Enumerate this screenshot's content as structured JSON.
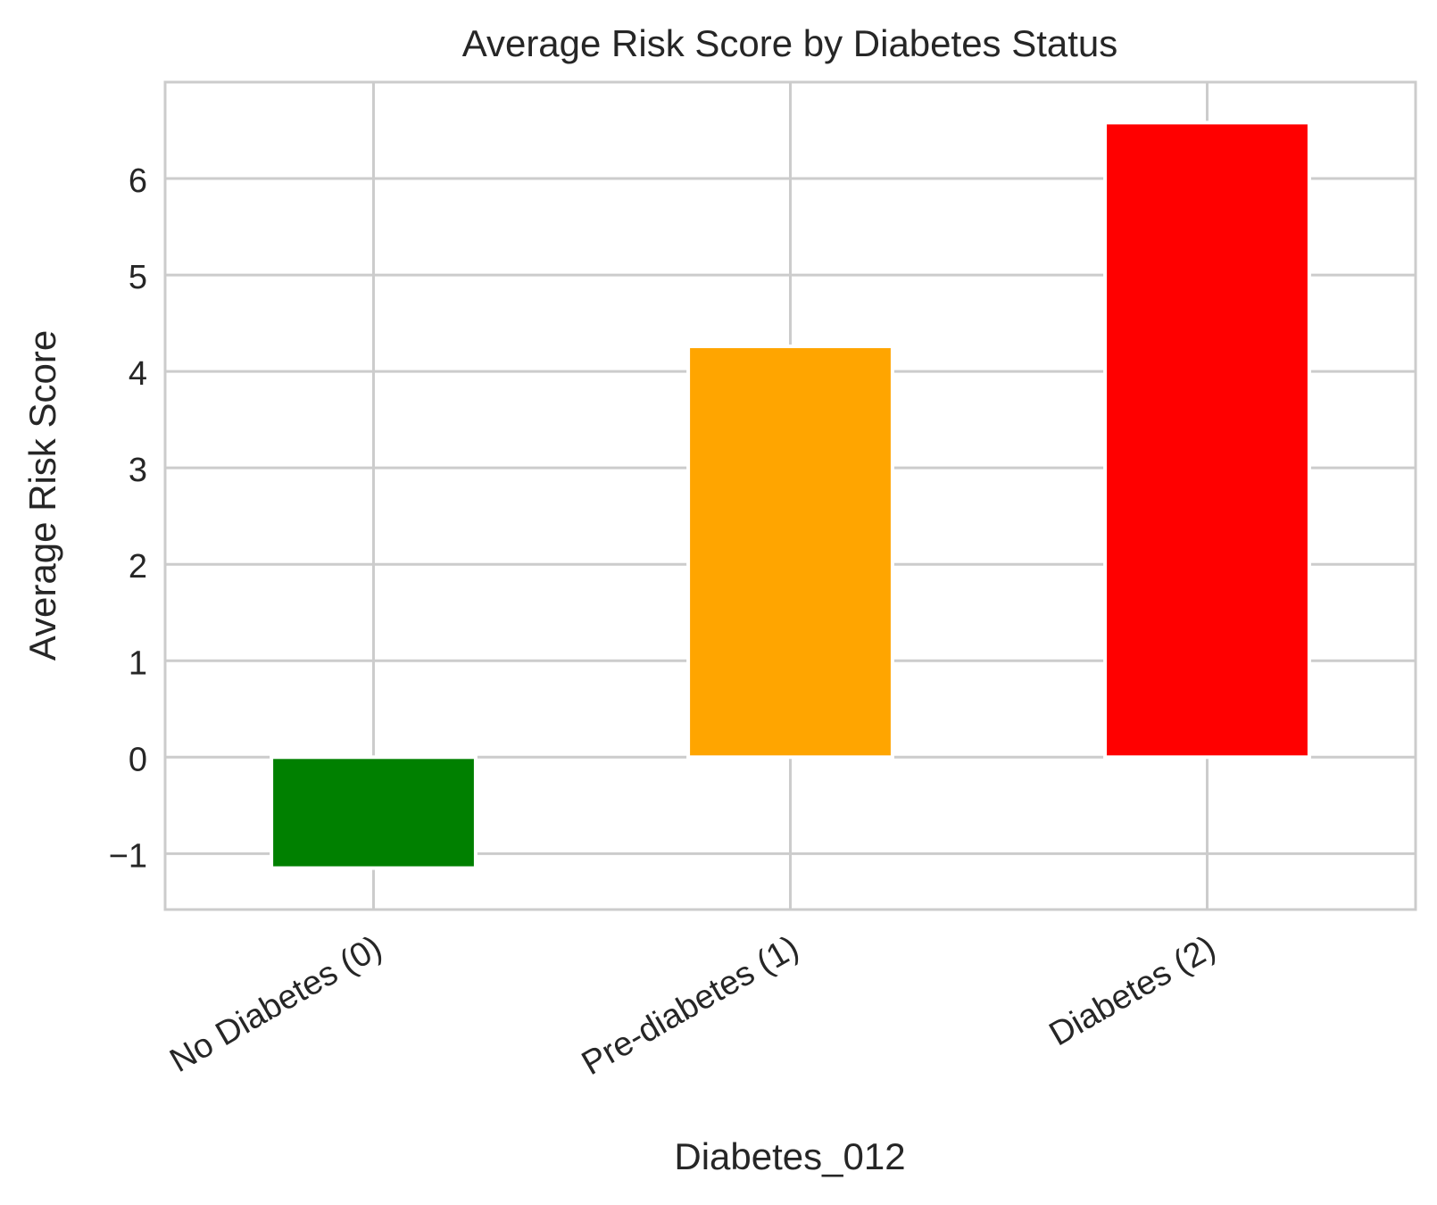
{
  "chart_data": {
    "type": "bar",
    "title": "Average Risk Score by Diabetes Status",
    "xlabel": "Diabetes_012",
    "ylabel": "Average Risk Score",
    "categories": [
      "No Diabetes (0)",
      "Pre-diabetes (1)",
      "Diabetes (2)"
    ],
    "values": [
      -1.15,
      4.26,
      6.58
    ],
    "colors": [
      "#008000",
      "#ffa500",
      "#ff0000"
    ],
    "ylim": [
      -1.58,
      7.0
    ],
    "yticks": [
      -1,
      0,
      1,
      2,
      3,
      4,
      5,
      6
    ],
    "ytick_labels": [
      "−1",
      "0",
      "1",
      "2",
      "3",
      "4",
      "5",
      "6"
    ],
    "grid": true,
    "xtick_rotation": "30 degrees",
    "style": {
      "grid_color": "#cccccc",
      "text_color": "#262626",
      "background": "#ffffff"
    }
  }
}
